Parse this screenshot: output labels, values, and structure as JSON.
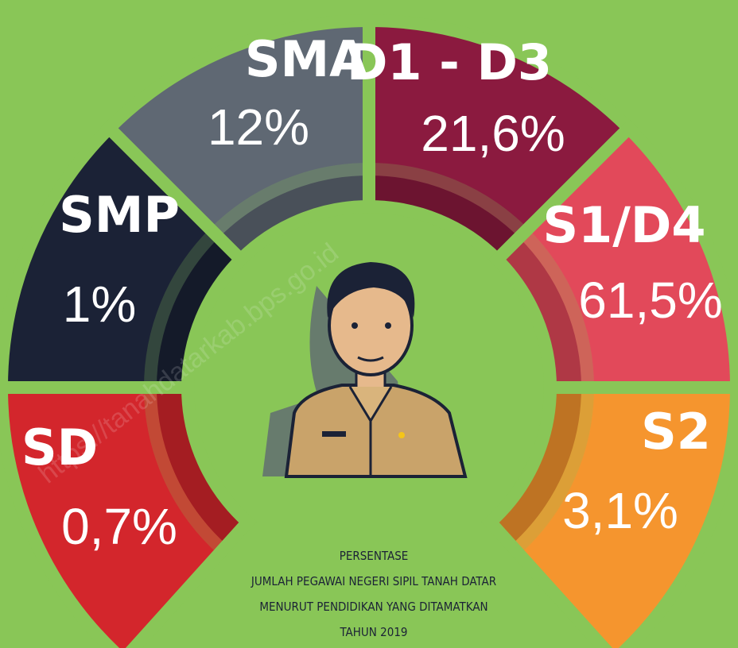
{
  "segments": [
    {
      "label": "SD",
      "percent": "0,7%",
      "color": "#d3262c"
    },
    {
      "label": "SMP",
      "percent": "1%",
      "color": "#1b2236"
    },
    {
      "label": "SMA",
      "percent": "12%",
      "color": "#5f6873"
    },
    {
      "label": "D1 - D3",
      "percent": "21,6%",
      "color": "#8b1a3f"
    },
    {
      "label": "S1/D4",
      "percent": "61,5%",
      "color": "#e2495a"
    },
    {
      "label": "S2",
      "percent": "3,1%",
      "color": "#f5952e"
    }
  ],
  "caption": [
    "PERSENTASE",
    "JUMLAH PEGAWAI NEGERI SIPIL TANAH DATAR",
    "MENURUT PENDIDIKAN YANG DITAMATKAN",
    "TAHUN 2019"
  ],
  "watermark": "https://tanahdatarkab.bps.go.id"
}
